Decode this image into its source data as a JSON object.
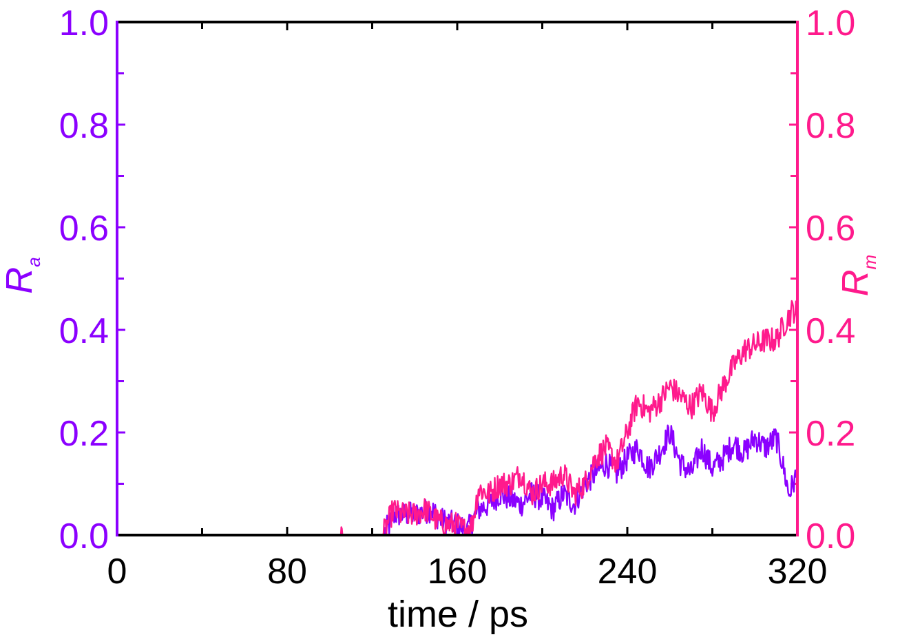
{
  "chart_data": {
    "type": "line",
    "xlabel": "time / ps",
    "ylabel_left": {
      "main": "R",
      "sub": "a"
    },
    "ylabel_right": {
      "main": "R",
      "sub": "m"
    },
    "xlim": [
      0,
      320
    ],
    "ylim_left": [
      0,
      1.0
    ],
    "ylim_right": [
      0,
      1.0
    ],
    "x_ticks": [
      "0",
      "80",
      "160",
      "240",
      "320"
    ],
    "y_ticks_left": [
      "0.0",
      "0.2",
      "0.4",
      "0.6",
      "0.8",
      "1.0"
    ],
    "y_ticks_right": [
      "0.0",
      "0.2",
      "0.4",
      "0.6",
      "0.8",
      "1.0"
    ],
    "grid": false,
    "colors": {
      "left_axis": "#8b00ff",
      "right_axis": "#ff1a8c",
      "frame": "#000000"
    },
    "series": [
      {
        "axis": "left",
        "color": "#8b00ff",
        "x": [
          0,
          100,
          125,
          128,
          130,
          135,
          140,
          148,
          152,
          160,
          165,
          170,
          175,
          180,
          185,
          190,
          195,
          200,
          205,
          210,
          215,
          220,
          225,
          230,
          235,
          240,
          245,
          250,
          255,
          260,
          265,
          270,
          275,
          280,
          285,
          290,
          295,
          300,
          305,
          310,
          313,
          316,
          320
        ],
        "values": [
          0,
          0,
          0,
          0.02,
          0.04,
          0.04,
          0.04,
          0.05,
          0.03,
          0.02,
          0.01,
          0.05,
          0.06,
          0.08,
          0.07,
          0.06,
          0.08,
          0.07,
          0.05,
          0.08,
          0.06,
          0.1,
          0.12,
          0.14,
          0.12,
          0.15,
          0.17,
          0.13,
          0.16,
          0.2,
          0.14,
          0.12,
          0.17,
          0.13,
          0.15,
          0.18,
          0.16,
          0.19,
          0.17,
          0.19,
          0.14,
          0.08,
          0.12
        ]
      },
      {
        "axis": "right",
        "color": "#ff1a8c",
        "x": [
          0,
          105,
          105.5,
          106,
          125,
          128,
          130,
          133,
          140,
          145,
          150,
          155,
          160,
          163,
          167,
          170,
          175,
          180,
          185,
          190,
          195,
          200,
          205,
          210,
          215,
          220,
          225,
          230,
          235,
          240,
          243,
          245,
          250,
          255,
          260,
          265,
          270,
          275,
          280,
          285,
          290,
          295,
          300,
          305,
          310,
          315,
          318,
          320
        ],
        "values": [
          0,
          0,
          0.025,
          0,
          0,
          0.03,
          0.05,
          0.04,
          0.04,
          0.05,
          0.03,
          0.02,
          0.02,
          0.01,
          0.02,
          0.09,
          0.08,
          0.1,
          0.1,
          0.12,
          0.08,
          0.1,
          0.1,
          0.12,
          0.08,
          0.1,
          0.15,
          0.17,
          0.14,
          0.2,
          0.24,
          0.26,
          0.24,
          0.26,
          0.29,
          0.27,
          0.25,
          0.28,
          0.24,
          0.29,
          0.33,
          0.36,
          0.37,
          0.38,
          0.38,
          0.42,
          0.44,
          0.43
        ]
      }
    ]
  }
}
